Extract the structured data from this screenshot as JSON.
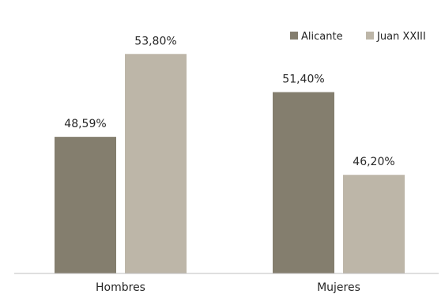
{
  "chart_data": {
    "type": "bar",
    "categories": [
      "Hombres",
      "Mujeres"
    ],
    "series": [
      {
        "name": "Alicante",
        "values": [
          48.59,
          51.4
        ],
        "labels": [
          "48,59%",
          "51,40%"
        ],
        "color": "#847e6e"
      },
      {
        "name": "Juan XXIII",
        "values": [
          53.8,
          46.2
        ],
        "labels": [
          "53,80%",
          "46,20%"
        ],
        "color": "#bdb6a8"
      }
    ],
    "ylim": [
      40,
      56
    ],
    "legend": "top-right",
    "grid": false
  }
}
